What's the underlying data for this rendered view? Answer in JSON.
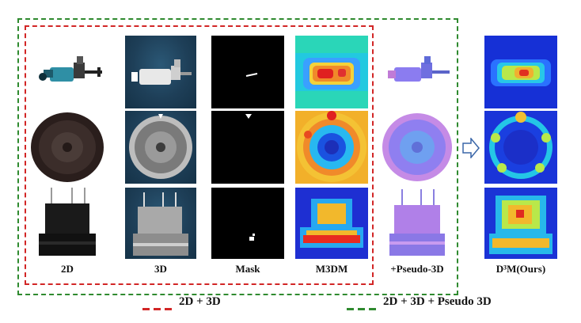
{
  "columns": {
    "c2d": "2D",
    "c3d": "3D",
    "mask": "Mask",
    "m3dm": "M3DM",
    "pseudo": "+Pseudo-3D",
    "ours": "D³M(Ours)"
  },
  "legend": {
    "red_label": "2D + 3D",
    "green_label": "2D + 3D + Pseudo 3D"
  },
  "colors": {
    "red_frame": "#d22626",
    "green_frame": "#2f8a2f"
  },
  "icons": {
    "arrow": "right-arrow-icon"
  }
}
